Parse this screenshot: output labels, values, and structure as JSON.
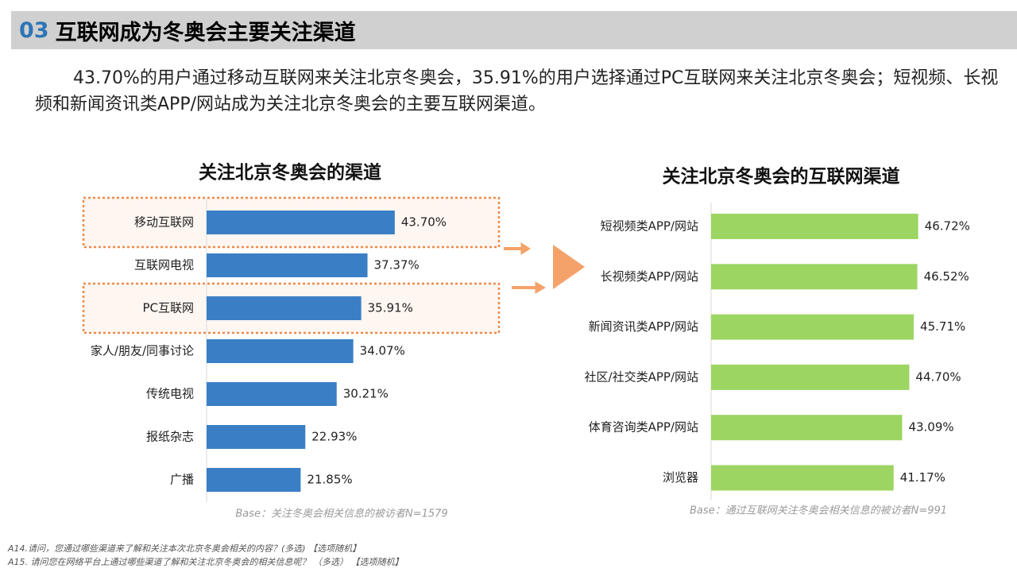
{
  "header": {
    "number": "03",
    "title": "互联网成为冬奥会主要关注渠道"
  },
  "paragraph": "43.70%的用户通过移动互联网来关注北京冬奥会，35.91%的用户选择通过PC互联网来关注北京冬奥会；短视频、长视频和新闻资讯类APP/网站成为关注北京冬奥会的主要互联网渠道。",
  "chart_data": [
    {
      "type": "hbar",
      "title": "关注北京冬奥会的渠道",
      "categories": [
        "移动互联网",
        "互联网电视",
        "PC互联网",
        "家人/朋友/同事讨论",
        "传统电视",
        "报纸杂志",
        "广播"
      ],
      "values": [
        43.7,
        37.37,
        35.91,
        34.07,
        30.21,
        22.93,
        21.85
      ],
      "value_labels": [
        "43.70%",
        "37.37%",
        "35.91%",
        "34.07%",
        "30.21%",
        "22.93%",
        "21.85%"
      ],
      "color": "#3a7fc5",
      "xlim": [
        0,
        50
      ],
      "highlight": [
        0,
        2
      ],
      "note": "Base：关注冬奥会相关信息的被访者N=1579"
    },
    {
      "type": "hbar",
      "title": "关注北京冬奥会的互联网渠道",
      "categories": [
        "短视频类APP/网站",
        "长视频类APP/网站",
        "新闻资讯类APP/网站",
        "社区/社交类APP/网站",
        "体育咨询类APP/网站",
        "浏览器"
      ],
      "values": [
        46.72,
        46.52,
        45.71,
        44.7,
        43.09,
        41.17
      ],
      "value_labels": [
        "46.72%",
        "46.52%",
        "45.71%",
        "44.70%",
        "43.09%",
        "41.17%"
      ],
      "color": "#9dd563",
      "xlim": [
        0,
        50
      ],
      "note": "Base：通过互联网关注冬奥会相关信息的被访者N=991"
    }
  ],
  "footnotes": [
    "A14.请问，您通过哪些渠道来了解和关注本次北京冬奥会相关的内容？(多选) 【选项随机】",
    "A15. 请问您在网络平台上通过哪些渠道了解和关注北京冬奥会的相关信息呢？ （多选） 【选项随机】"
  ]
}
